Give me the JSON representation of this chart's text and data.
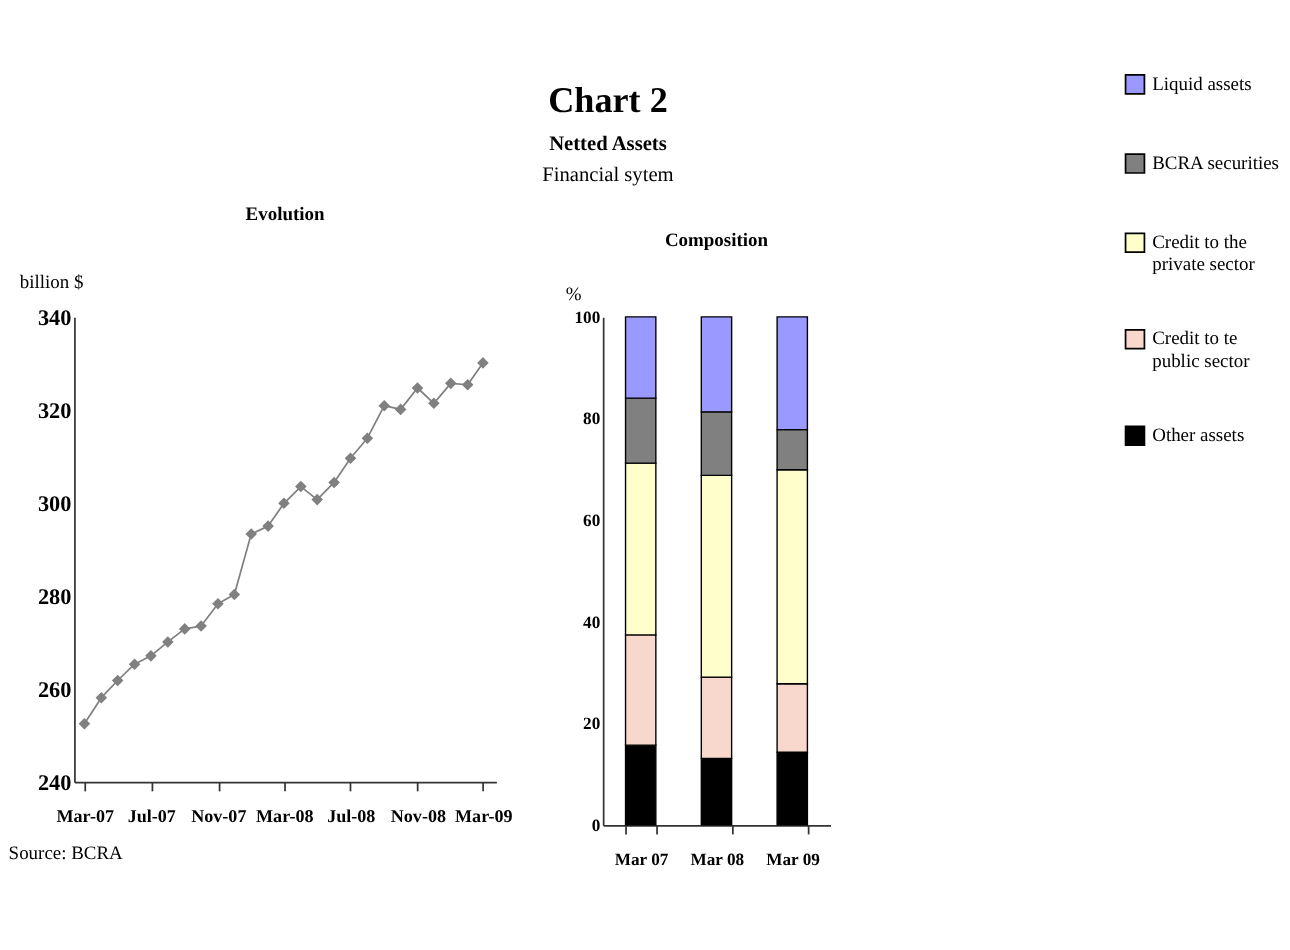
{
  "chart_data": [
    {
      "type": "other",
      "title": "Chart 2",
      "subtitle": "Netted Assets",
      "annotations": [
        "Financial sytem"
      ]
    },
    {
      "type": "line",
      "title": "Evolution",
      "ylabel": "billion $",
      "marker": "diamond",
      "line_style": "solid",
      "grid": false,
      "x": [
        "2007-03",
        "2007-04",
        "2007-05",
        "2007-06",
        "2007-07",
        "2007-08",
        "2007-09",
        "2007-10",
        "2007-11",
        "2007-12",
        "2008-01",
        "2008-02",
        "2008-03",
        "2008-04",
        "2008-05",
        "2008-06",
        "2008-07",
        "2008-08",
        "2008-09",
        "2008-10",
        "2008-11",
        "2008-12",
        "2009-01",
        "2009-02",
        "2009-03"
      ],
      "series": [
        {
          "color": "#808080",
          "values": [
            252.5,
            258.1,
            261.8,
            265.3,
            267.1,
            270.1,
            272.9,
            273.5,
            278.3,
            280.3,
            293.3,
            295.0,
            299.9,
            303.5,
            300.7,
            304.4,
            309.6,
            313.9,
            320.9,
            320.1,
            324.7,
            321.4,
            325.7,
            325.4,
            330.1
          ]
        }
      ],
      "xlim": [
        "2007-02-10",
        "2009-03-25"
      ],
      "xticks": [
        {
          "value": "2007-03",
          "label": "Mar-07"
        },
        {
          "value": "2007-07",
          "label": "Jul-07"
        },
        {
          "value": "2007-11",
          "label": "Nov-07"
        },
        {
          "value": "2008-03",
          "label": "Mar-08"
        },
        {
          "value": "2008-07",
          "label": "Jul-08"
        },
        {
          "value": "2008-11",
          "label": "Nov-08"
        },
        {
          "value": "2009-03",
          "label": "Mar-09"
        }
      ],
      "ylim": [
        240,
        340
      ],
      "yticks": [
        240,
        260,
        280,
        300,
        320,
        340
      ],
      "annotations": [
        "Source: BCRA"
      ]
    },
    {
      "type": "bar",
      "title": "Composition",
      "ylabel": "%",
      "stacked": true,
      "legend": "right",
      "grid": false,
      "categories": [
        "Mar 07",
        "Mar 08",
        "Mar 09"
      ],
      "series": [
        {
          "name": "Other assets",
          "color": "#000000",
          "values": [
            15.7,
            13.1,
            14.3
          ]
        },
        {
          "name": "Credit to te public sector",
          "color": "#f8d8cc",
          "values": [
            21.7,
            16.0,
            13.5
          ]
        },
        {
          "name": "Credit to the private sector",
          "color": "#ffffcc",
          "values": [
            33.8,
            39.7,
            42.1
          ]
        },
        {
          "name": "BCRA securities",
          "color": "#808080",
          "values": [
            12.8,
            12.5,
            7.9
          ]
        },
        {
          "name": "Liquid assets",
          "color": "#9999ff",
          "values": [
            16.0,
            18.7,
            22.2
          ]
        }
      ],
      "ylim": [
        0,
        100
      ],
      "yticks": [
        0,
        20,
        40,
        60,
        80,
        100
      ]
    }
  ]
}
